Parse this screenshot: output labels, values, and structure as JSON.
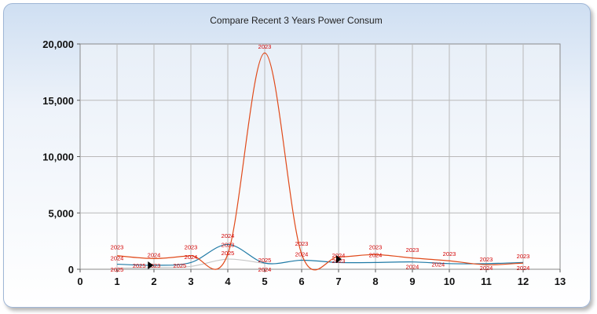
{
  "chart_data": {
    "type": "line",
    "title": "Compare Recent 3 Years Power Consum",
    "xlabel": "",
    "ylabel": "",
    "xlim": [
      0,
      13
    ],
    "ylim": [
      0,
      20000
    ],
    "x_ticks": [
      "0",
      "1",
      "2",
      "3",
      "4",
      "5",
      "6",
      "7",
      "8",
      "9",
      "10",
      "11",
      "12",
      "13"
    ],
    "y_ticks": [
      "0",
      "5,000",
      "10,000",
      "15,000",
      "20,000"
    ],
    "grid": true,
    "legend": "none",
    "series": [
      {
        "name": "2023",
        "color": "#e04a1a",
        "points": [
          {
            "x": 1,
            "y": 1200,
            "label": "2023"
          },
          {
            "x": 2,
            "y": 950,
            "label": "2023"
          },
          {
            "x": 3,
            "y": 1200,
            "label": "2023"
          },
          {
            "x": 4,
            "y": 1350,
            "label": "2023"
          },
          {
            "x": 5,
            "y": 19200,
            "label": "2023"
          },
          {
            "x": 6,
            "y": 1350,
            "label": "2023"
          },
          {
            "x": 7,
            "y": 1100,
            "label": "2023"
          },
          {
            "x": 8,
            "y": 1300,
            "label": "2023"
          },
          {
            "x": 9,
            "y": 1000,
            "label": "2023"
          },
          {
            "x": 10,
            "y": 750,
            "label": "2023"
          },
          {
            "x": 11,
            "y": 400,
            "label": "2023"
          },
          {
            "x": 12,
            "y": 550,
            "label": "2023"
          }
        ]
      },
      {
        "name": "2024",
        "color": "#1f7aa6",
        "points": [
          {
            "x": 1,
            "y": 450,
            "label": "2024"
          },
          {
            "x": 2,
            "y": 350,
            "label": "2024"
          },
          {
            "x": 3,
            "y": 600,
            "label": "2024"
          },
          {
            "x": 4,
            "y": 2200,
            "label": "2024"
          },
          {
            "x": 5,
            "y": 550,
            "label": "2024"
          },
          {
            "x": 6,
            "y": 800,
            "label": "2024"
          },
          {
            "x": 7,
            "y": 600,
            "label": "2024"
          },
          {
            "x": 8,
            "y": 600,
            "label": "2024"
          },
          {
            "x": 9,
            "y": 650,
            "label": "2024"
          },
          {
            "x": 10,
            "y": 500,
            "label": "2024"
          },
          {
            "x": 11,
            "y": 500,
            "label": "2024"
          },
          {
            "x": 12,
            "y": 600,
            "label": "2024"
          }
        ]
      },
      {
        "name": "2025",
        "color": "#c8c8c8",
        "points": [
          {
            "x": 1,
            "y": 100,
            "label": "2025"
          },
          {
            "x": 2,
            "y": 150,
            "label": "2025"
          },
          {
            "x": 3,
            "y": 250,
            "label": "2025"
          },
          {
            "x": 4,
            "y": 900,
            "label": "2025"
          },
          {
            "x": 5,
            "y": 500,
            "label": "2025"
          }
        ]
      }
    ],
    "series_labels": [
      {
        "x": 1,
        "y": 2000,
        "label": "2023"
      },
      {
        "x": 1,
        "y": 1000,
        "label": "2024"
      },
      {
        "x": 1,
        "y": 0,
        "label": "2025"
      },
      {
        "x": 1.6,
        "y": 350,
        "label": "2025"
      },
      {
        "x": 2,
        "y": 1300,
        "label": "2024"
      },
      {
        "x": 2,
        "y": 350,
        "label": "2023"
      },
      {
        "x": 3,
        "y": 2000,
        "label": "2023"
      },
      {
        "x": 3,
        "y": 1100,
        "label": "2024"
      },
      {
        "x": 2.7,
        "y": 350,
        "label": "2025"
      },
      {
        "x": 4,
        "y": 3000,
        "label": "2024"
      },
      {
        "x": 4,
        "y": 2200,
        "label": "2023"
      },
      {
        "x": 4,
        "y": 1450,
        "label": "2025"
      },
      {
        "x": 5,
        "y": 19800,
        "label": "2023"
      },
      {
        "x": 5,
        "y": 850,
        "label": "2025"
      },
      {
        "x": 5,
        "y": 0,
        "label": "2024"
      },
      {
        "x": 6,
        "y": 2300,
        "label": "2023"
      },
      {
        "x": 6,
        "y": 1350,
        "label": "2024"
      },
      {
        "x": 7,
        "y": 1250,
        "label": "2024"
      },
      {
        "x": 7,
        "y": 750,
        "label": "2023"
      },
      {
        "x": 8,
        "y": 2000,
        "label": "2023"
      },
      {
        "x": 8,
        "y": 1300,
        "label": "2024"
      },
      {
        "x": 9,
        "y": 1750,
        "label": "2023"
      },
      {
        "x": 9,
        "y": 250,
        "label": "2024"
      },
      {
        "x": 10,
        "y": 1400,
        "label": "2023"
      },
      {
        "x": 9.7,
        "y": 450,
        "label": "2024"
      },
      {
        "x": 11,
        "y": 900,
        "label": "2023"
      },
      {
        "x": 11,
        "y": 150,
        "label": "2024"
      },
      {
        "x": 12,
        "y": 1200,
        "label": "2023"
      },
      {
        "x": 12,
        "y": 150,
        "label": "2024"
      }
    ],
    "cursor_markers": [
      {
        "x": 1.9,
        "y": 350
      },
      {
        "x": 7,
        "y": 900
      }
    ]
  }
}
